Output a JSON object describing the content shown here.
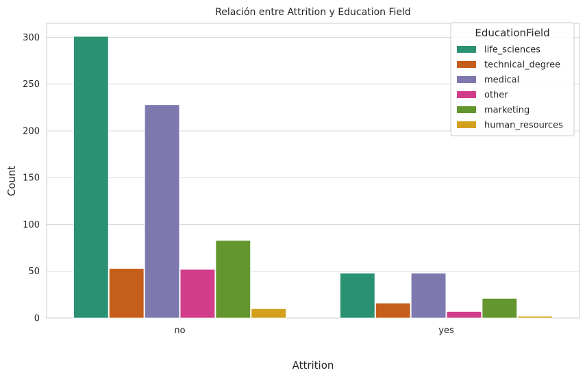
{
  "chart_data": {
    "type": "bar",
    "title": "Relación entre Attrition y Education Field",
    "xlabel": "Attrition",
    "ylabel": "Count",
    "categories": [
      "no",
      "yes"
    ],
    "ylim": [
      0,
      315
    ],
    "yticks": [
      0,
      50,
      100,
      150,
      200,
      250,
      300
    ],
    "grid": true,
    "legend": {
      "title": "EducationField",
      "placement": "top-right"
    },
    "series": [
      {
        "name": "life_sciences",
        "color": "#2a9172",
        "values": [
          301,
          48
        ]
      },
      {
        "name": "technical_degree",
        "color": "#c55e1a",
        "values": [
          53,
          16
        ]
      },
      {
        "name": "medical",
        "color": "#7d78ae",
        "values": [
          228,
          48
        ]
      },
      {
        "name": "other",
        "color": "#d13d8a",
        "values": [
          52,
          7
        ]
      },
      {
        "name": "marketing",
        "color": "#64962f",
        "values": [
          83,
          21
        ]
      },
      {
        "name": "human_resources",
        "color": "#d2a01c",
        "values": [
          10,
          2
        ]
      }
    ]
  }
}
